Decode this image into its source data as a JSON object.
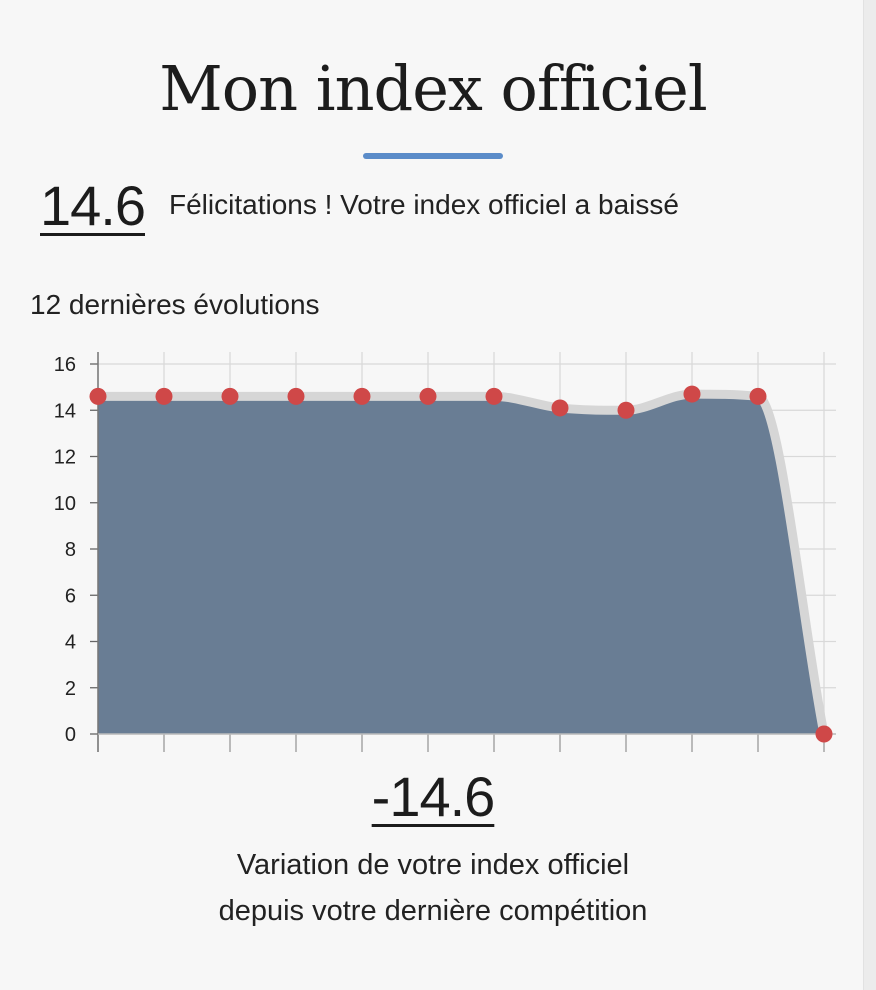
{
  "header": {
    "title": "Mon index officiel"
  },
  "index": {
    "value": "14.6",
    "message": "Félicitations ! Votre index officiel a baissé"
  },
  "chart_label": "12 dernières évolutions",
  "chart_data": {
    "type": "area",
    "title": "12 dernières évolutions",
    "x": [
      1,
      2,
      3,
      4,
      5,
      6,
      7,
      8,
      9,
      10,
      11,
      12
    ],
    "series": [
      {
        "values": [
          14.6,
          14.6,
          14.6,
          14.6,
          14.6,
          14.6,
          14.6,
          14.1,
          14.0,
          14.7,
          14.6,
          0
        ]
      }
    ],
    "ylim": [
      0,
      16
    ],
    "yticks": [
      0,
      2,
      4,
      6,
      8,
      10,
      12,
      14,
      16
    ],
    "grid": true,
    "legend": "none",
    "colors": {
      "fill": "#697d94",
      "line": "#d6d6d6",
      "point": "#cf4848",
      "grid": "#d9d9d9"
    }
  },
  "variation": {
    "value": "-14.6",
    "caption_line1": "Variation de votre index officiel",
    "caption_line2": "depuis votre dernière compétition"
  }
}
